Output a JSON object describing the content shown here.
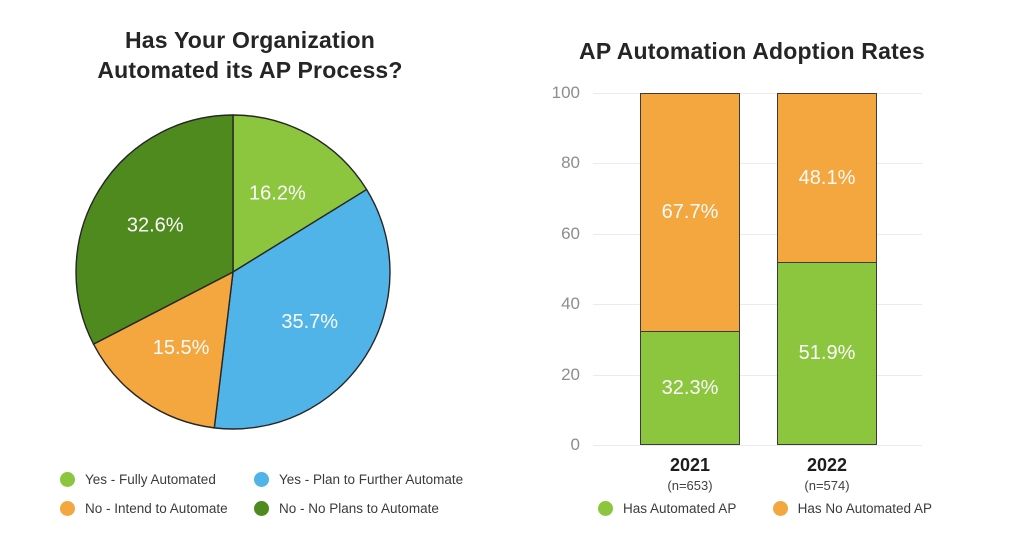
{
  "pie_panel": {
    "title_lines": [
      "Has Your Organization",
      "Automated its AP Process?"
    ],
    "legend": [
      {
        "label": "Yes - Fully Automated",
        "color": "#8CC63F",
        "icon": "circle"
      },
      {
        "label": "Yes - Plan to Further Automate",
        "color": "#50B4E8",
        "icon": "circle"
      },
      {
        "label": "No - Intend to Automate",
        "color": "#F3A73E",
        "icon": "circle"
      },
      {
        "label": "No - No Plans to Automate",
        "color": "#4F8A1E",
        "icon": "circle"
      }
    ]
  },
  "bar_panel": {
    "title": "AP Automation Adoption Rates",
    "legend": [
      {
        "label": "Has Automated AP",
        "color": "#8CC63F",
        "icon": "circle"
      },
      {
        "label": "Has No Automated AP",
        "color": "#F3A73E",
        "icon": "circle"
      }
    ]
  },
  "chart_data": [
    {
      "type": "pie",
      "title": "Has Your Organization Automated its AP Process?",
      "start_angle_deg": 0,
      "direction": "clockwise",
      "slices": [
        {
          "label": "Yes - Fully Automated",
          "value": 16.2,
          "display": "16.2%",
          "color": "#8CC63F"
        },
        {
          "label": "Yes - Plan to Further Automate",
          "value": 35.7,
          "display": "35.7%",
          "color": "#50B4E8"
        },
        {
          "label": "No - Intend to Automate",
          "value": 15.5,
          "display": "15.5%",
          "color": "#F3A73E"
        },
        {
          "label": "No - No Plans to Automate",
          "value": 32.6,
          "display": "32.6%",
          "color": "#4F8A1E"
        }
      ],
      "legend_position": "bottom"
    },
    {
      "type": "bar",
      "stacked": true,
      "title": "AP Automation Adoption Rates",
      "categories": [
        "2021",
        "2022"
      ],
      "category_sublabels": [
        "(n=653)",
        "(n=574)"
      ],
      "series": [
        {
          "name": "Has Automated AP",
          "color": "#8CC63F",
          "values": [
            32.3,
            51.9
          ],
          "display": [
            "32.3%",
            "51.9%"
          ]
        },
        {
          "name": "Has No Automated AP",
          "color": "#F3A73E",
          "values": [
            67.7,
            48.1
          ],
          "display": [
            "67.7%",
            "48.1%"
          ]
        }
      ],
      "ylim": [
        0,
        100
      ],
      "yticks": [
        0,
        20,
        40,
        60,
        80,
        100
      ],
      "grid": true,
      "legend_position": "bottom"
    }
  ],
  "colors": {
    "background": "#ffffff",
    "title_text": "#252525",
    "value_label_text": "#fbfbfb",
    "axis_tick_text": "#8d8d8d",
    "gridline": "#ebebeb",
    "segment_border": "#3b3b3b",
    "legend_text": "#3b3b3b",
    "pie_light_green": "#8CC63F",
    "pie_blue": "#50B4E8",
    "pie_orange": "#F3A73E",
    "pie_dark_green": "#4F8A1E"
  }
}
